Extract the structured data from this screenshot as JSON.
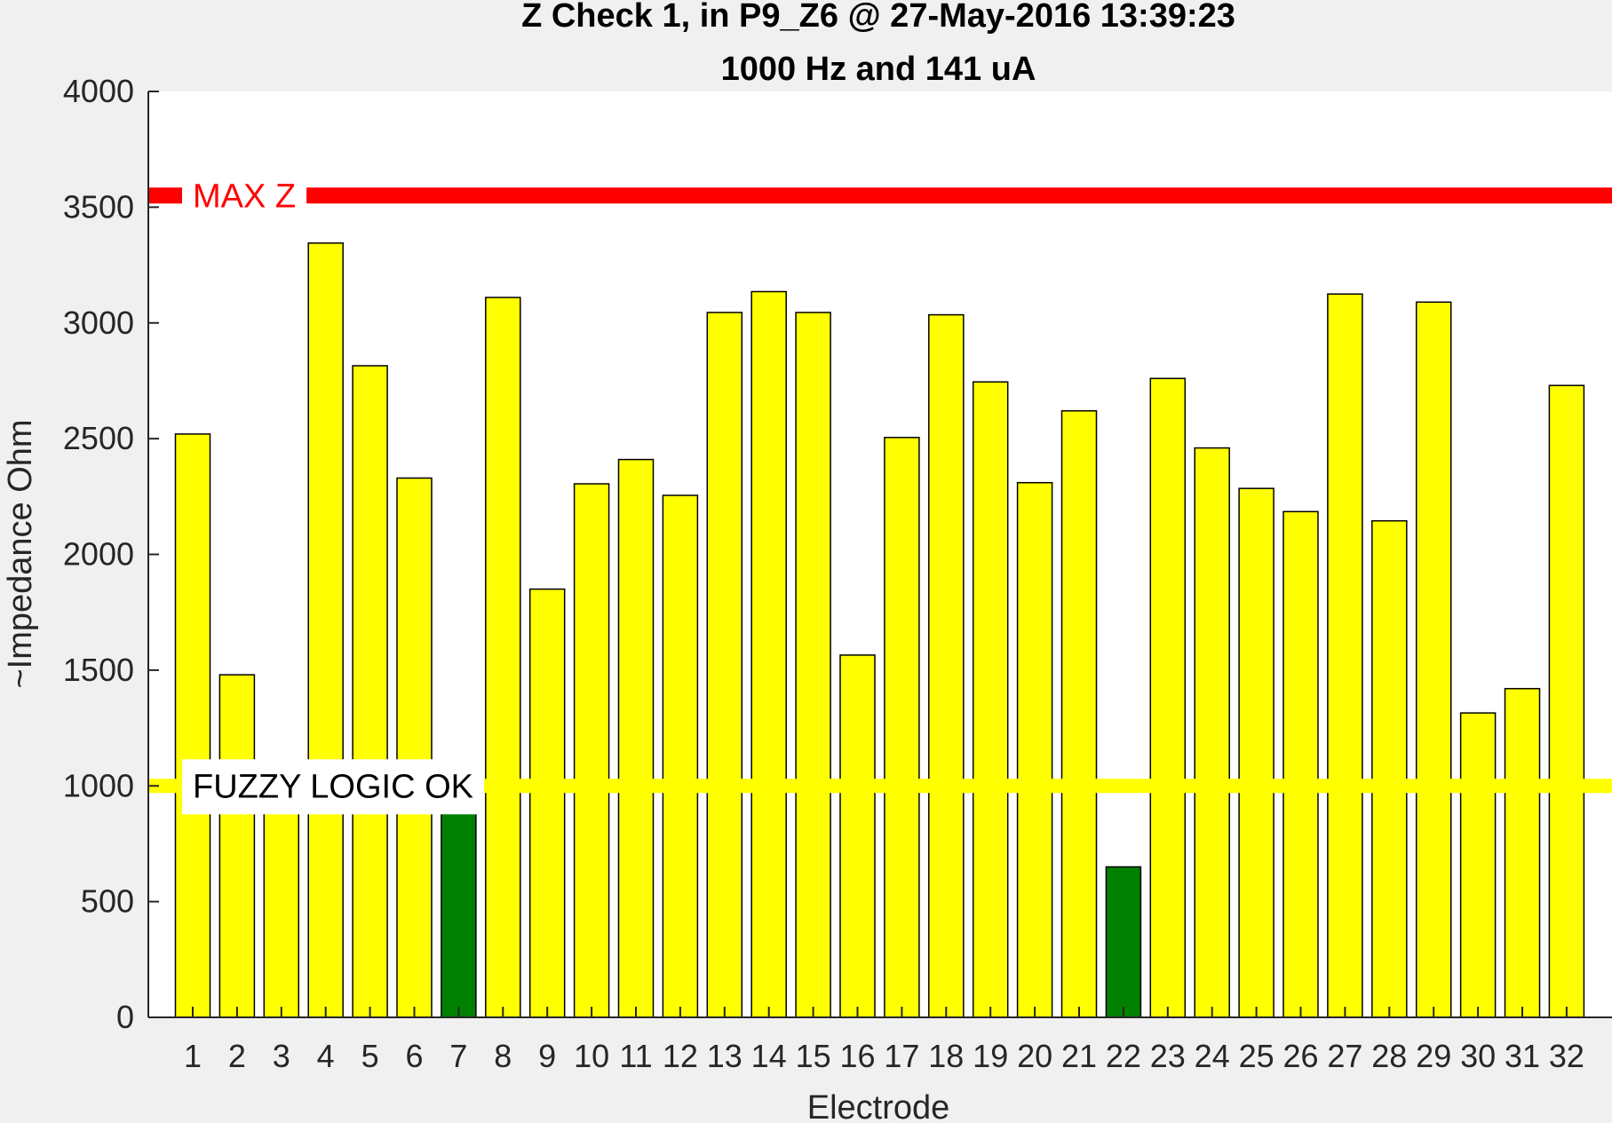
{
  "chart_data": {
    "type": "bar",
    "title": "Z Check 1, in P9_Z6 @ 27-May-2016 13:39:23",
    "subtitle": "1000 Hz and 141 uA",
    "xlabel": "Electrode",
    "ylabel": "~Impedance Ohm",
    "ylim": [
      0,
      4000
    ],
    "yticks": [
      0,
      500,
      1000,
      1500,
      2000,
      2500,
      3000,
      3500,
      4000
    ],
    "grid": false,
    "categories": [
      "1",
      "2",
      "3",
      "4",
      "5",
      "6",
      "7",
      "8",
      "9",
      "10",
      "11",
      "12",
      "13",
      "14",
      "15",
      "16",
      "17",
      "18",
      "19",
      "20",
      "21",
      "22",
      "23",
      "24",
      "25",
      "26",
      "27",
      "28",
      "29",
      "30",
      "31",
      "32"
    ],
    "values": [
      2520,
      1480,
      900,
      3345,
      2815,
      2330,
      900,
      3110,
      1850,
      2305,
      2410,
      2255,
      3045,
      3135,
      3045,
      1565,
      2505,
      3035,
      2745,
      2310,
      2620,
      650,
      2760,
      2460,
      2285,
      2185,
      3125,
      2145,
      3090,
      1315,
      1420,
      2730
    ],
    "bar_colors": [
      "#ffff00",
      "#ffff00",
      "#ffff00",
      "#ffff00",
      "#ffff00",
      "#ffff00",
      "#008000",
      "#ffff00",
      "#ffff00",
      "#ffff00",
      "#ffff00",
      "#ffff00",
      "#ffff00",
      "#ffff00",
      "#ffff00",
      "#ffff00",
      "#ffff00",
      "#ffff00",
      "#ffff00",
      "#ffff00",
      "#ffff00",
      "#008000",
      "#ffff00",
      "#ffff00",
      "#ffff00",
      "#ffff00",
      "#ffff00",
      "#ffff00",
      "#ffff00",
      "#ffff00",
      "#ffff00",
      "#ffff00"
    ],
    "reference_lines": [
      {
        "label": "MAX Z",
        "value": 3550,
        "color": "#ff0000",
        "label_color": "#ff0000"
      },
      {
        "label": "FUZZY LOGIC OK",
        "value": 1000,
        "color": "#ffff00",
        "label_color": "#000000"
      }
    ]
  }
}
